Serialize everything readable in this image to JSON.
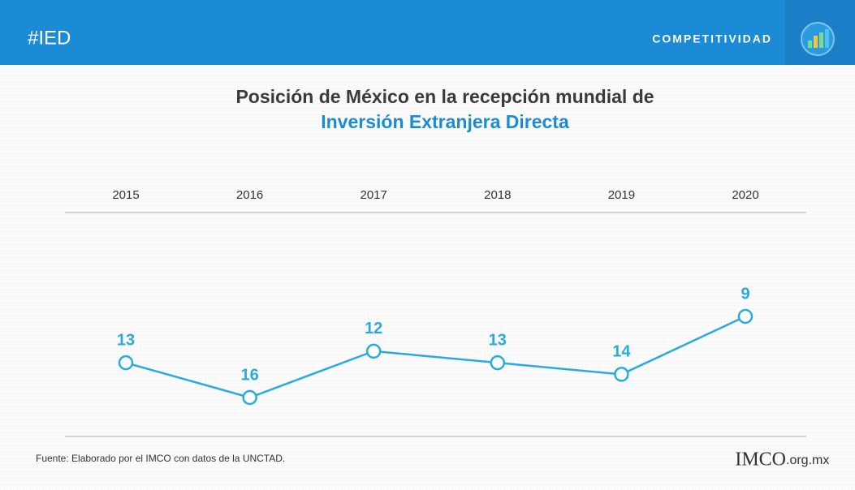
{
  "header": {
    "hashtag": "#IED",
    "section": "COMPETITIVIDAD"
  },
  "chart_data": {
    "type": "line",
    "title": "Posición de México en la recepción mundial de",
    "subtitle": "Inversión Extranjera Directa",
    "categories": [
      "2015",
      "2016",
      "2017",
      "2018",
      "2019",
      "2020"
    ],
    "values": [
      13,
      16,
      12,
      13,
      14,
      9
    ],
    "color": "#29abe2",
    "y_inverted": true
  },
  "footer": {
    "source": "Fuente: Elaborado por el IMCO con datos de la UNCTAD.",
    "logo": "IMCO",
    "domain": ".org.mx"
  }
}
